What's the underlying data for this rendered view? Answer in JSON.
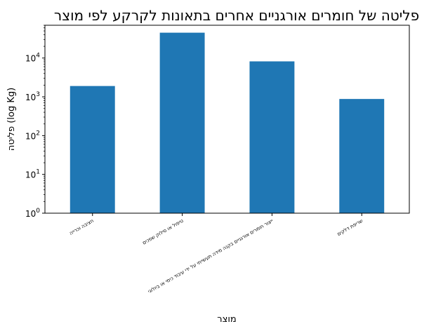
{
  "chart_data": {
    "type": "bar",
    "title": "פליטה של חומרים אורגניים אחרים בתאונות לקרקע לפי מוצר",
    "xlabel": "מוצר",
    "ylabel": "פליטה (log Kg)",
    "categories": [
      "חציבה וכרייה",
      "טיפול או סילוק שפכים",
      "ייצור חומרים אורגניים בקנה מידה תעשייתי על ידי עיבוד כימי או ביולוגי",
      "שריפת דלקים"
    ],
    "values": [
      1900,
      45000,
      8200,
      880
    ],
    "yscale": "log",
    "ylim": [
      1,
      70000
    ],
    "yticks": [
      {
        "base": "10",
        "exp": "0",
        "value": 1
      },
      {
        "base": "10",
        "exp": "1",
        "value": 10
      },
      {
        "base": "10",
        "exp": "2",
        "value": 100
      },
      {
        "base": "10",
        "exp": "3",
        "value": 1000
      },
      {
        "base": "10",
        "exp": "4",
        "value": 10000
      }
    ],
    "bar_color": "#1f77b4",
    "grid": false,
    "legend": "none"
  }
}
